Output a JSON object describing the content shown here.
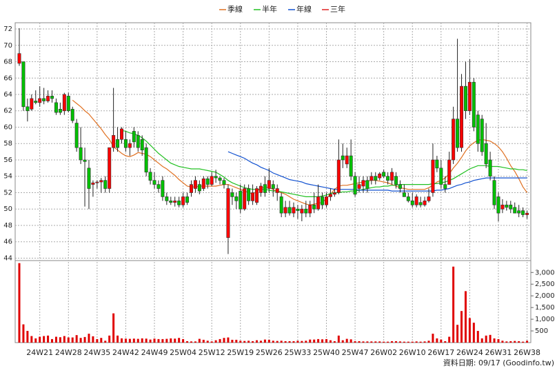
{
  "chart_data": {
    "type": "candlestick",
    "footer": "資料日期: 09/17  (Goodinfo.tw)",
    "categories": [
      null,
      null,
      null,
      null,
      null,
      "24W21",
      null,
      null,
      null,
      null,
      null,
      null,
      "24W28",
      null,
      null,
      null,
      null,
      null,
      null,
      "24W35",
      null,
      null,
      null,
      null,
      null,
      null,
      "24W42",
      null,
      null,
      null,
      null,
      null,
      null,
      "24W49",
      null,
      null,
      null,
      null,
      null,
      null,
      "25W04",
      null,
      null,
      null,
      null,
      null,
      null,
      "25W12",
      null,
      null,
      null,
      null,
      null,
      null,
      "25W19",
      null,
      null,
      null,
      null,
      null,
      null,
      "25W26",
      null,
      null,
      null,
      null,
      null,
      null,
      "25W33",
      null,
      null,
      null,
      null,
      null,
      null,
      "25W40",
      null,
      null,
      null,
      null,
      null,
      null,
      "25W47",
      null,
      null,
      null,
      null,
      null,
      null,
      "26W02",
      null,
      null,
      null,
      null,
      null,
      null,
      "26W10",
      null,
      null,
      null,
      null,
      null,
      null,
      "26W17",
      null,
      null,
      null,
      null,
      null,
      null,
      "26W24",
      null,
      null,
      null,
      null,
      null,
      null,
      "26W31",
      null,
      null,
      null,
      null,
      null,
      null,
      "26W38"
    ],
    "open": [
      67.8,
      68.0,
      62.5,
      62.2,
      63.2,
      63.0,
      63.5,
      63.2,
      63.8,
      63.0,
      62.2,
      62.0,
      63.8,
      62.2,
      60.5,
      57.5,
      56.0,
      55.0,
      53.0,
      53.2,
      53.3,
      53.5,
      52.5,
      57.5,
      58.5,
      58.5,
      58.5,
      57.5,
      59.5,
      59.0,
      58.5,
      57.5,
      54.5,
      53.5,
      53.0,
      53.5,
      51.5,
      51.0,
      50.8,
      51.0,
      50.5,
      51.5,
      52.0,
      52.5,
      53.0,
      52.5,
      53.7,
      53.0,
      54.0,
      53.8,
      53.5,
      46.5,
      52.0,
      51.5,
      52.2,
      50.0,
      52.5,
      51.0,
      50.8,
      52.0,
      53.0,
      52.5,
      53.0,
      52.0,
      51.5,
      49.5,
      50.2,
      49.5,
      50.0,
      49.5,
      50.0,
      49.5,
      50.5,
      50.0,
      51.5,
      50.5,
      51.5,
      51.8,
      52.0,
      56.5,
      55.5,
      56.5,
      54.0,
      52.5,
      52.8,
      53.5,
      53.5,
      54.0,
      53.8,
      54.5,
      54.0,
      53.5,
      54.0,
      53.0,
      52.0,
      51.5,
      51.0,
      50.5,
      50.8,
      50.5,
      51.0,
      52.0,
      56.0,
      55.0,
      53.0,
      53.0,
      56.0,
      61.0,
      57.5,
      65.0,
      62.0,
      65.5,
      61.5,
      61.0,
      58.0,
      56.0,
      53.5,
      51.5,
      50.0,
      50.5,
      50.5,
      50.2,
      49.8,
      49.8,
      49.3
    ],
    "high": [
      72.1,
      68.0,
      63.5,
      64.0,
      64.5,
      65.0,
      64.8,
      64.5,
      64.5,
      63.5,
      63.0,
      64.2,
      64.2,
      62.5,
      61.0,
      60.0,
      57.5,
      56.0,
      53.5,
      53.5,
      53.8,
      54.0,
      57.5,
      64.8,
      60.0,
      60.0,
      59.5,
      58.5,
      60.0,
      59.5,
      59.0,
      58.0,
      55.0,
      54.5,
      53.5,
      54.0,
      52.0,
      51.5,
      51.5,
      51.5,
      52.0,
      52.0,
      53.5,
      54.0,
      53.5,
      54.0,
      54.0,
      54.5,
      54.8,
      54.0,
      53.8,
      53.0,
      52.5,
      52.0,
      53.0,
      53.0,
      53.0,
      53.0,
      52.8,
      53.2,
      54.0,
      55.0,
      53.5,
      53.0,
      52.0,
      51.0,
      51.0,
      50.8,
      50.5,
      50.5,
      51.0,
      51.0,
      52.0,
      53.0,
      52.0,
      52.0,
      52.5,
      52.5,
      58.5,
      58.0,
      57.5,
      58.5,
      54.5,
      54.0,
      54.0,
      54.0,
      54.5,
      54.5,
      54.5,
      54.8,
      54.5,
      55.0,
      54.5,
      53.5,
      53.0,
      52.0,
      52.0,
      51.8,
      51.5,
      51.5,
      52.5,
      58.0,
      56.5,
      56.0,
      54.0,
      57.0,
      62.5,
      70.8,
      66.5,
      68.0,
      68.3,
      66.0,
      62.0,
      61.5,
      60.5,
      57.0,
      54.0,
      52.0,
      51.2,
      51.0,
      51.0,
      50.8,
      50.5,
      50.2,
      49.8
    ],
    "low": [
      67.5,
      62.0,
      60.7,
      62.0,
      62.8,
      62.5,
      62.8,
      63.0,
      63.0,
      61.5,
      61.5,
      61.5,
      61.8,
      60.5,
      57.0,
      55.5,
      50.3,
      50.0,
      51.5,
      52.5,
      52.0,
      52.0,
      52.0,
      57.0,
      57.0,
      58.0,
      57.0,
      56.5,
      57.5,
      57.0,
      56.5,
      54.0,
      53.0,
      52.5,
      52.0,
      51.0,
      50.5,
      50.5,
      50.3,
      50.2,
      50.2,
      50.5,
      51.5,
      52.0,
      51.8,
      52.2,
      52.5,
      52.8,
      53.2,
      53.0,
      52.5,
      44.5,
      50.5,
      50.0,
      49.5,
      49.8,
      50.5,
      50.5,
      50.5,
      51.5,
      51.5,
      52.0,
      51.5,
      51.0,
      49.0,
      49.0,
      49.2,
      49.0,
      48.8,
      48.5,
      49.0,
      49.0,
      49.5,
      49.8,
      50.0,
      50.2,
      51.0,
      51.5,
      51.8,
      55.0,
      55.0,
      53.5,
      51.5,
      52.0,
      52.0,
      52.0,
      53.0,
      53.0,
      53.5,
      53.8,
      53.0,
      53.0,
      52.5,
      52.0,
      51.5,
      50.8,
      50.2,
      50.2,
      50.2,
      50.3,
      50.8,
      51.5,
      54.5,
      52.5,
      52.0,
      53.0,
      55.5,
      57.0,
      57.0,
      61.0,
      61.5,
      59.5,
      57.0,
      56.5,
      55.0,
      53.5,
      50.0,
      48.5,
      49.5,
      49.8,
      49.5,
      49.5,
      49.0,
      49.0,
      48.8
    ],
    "close": [
      69.0,
      62.5,
      62.0,
      63.5,
      63.0,
      63.5,
      63.2,
      63.8,
      63.5,
      61.8,
      61.8,
      64.0,
      62.0,
      60.8,
      57.5,
      56.0,
      55.8,
      52.5,
      53.2,
      53.3,
      53.5,
      52.5,
      57.5,
      59.0,
      57.5,
      59.8,
      57.5,
      58.0,
      58.2,
      57.5,
      57.2,
      54.5,
      53.5,
      53.0,
      52.5,
      51.5,
      51.0,
      50.8,
      51.0,
      50.5,
      51.5,
      50.8,
      53.0,
      53.5,
      52.2,
      53.7,
      53.0,
      54.0,
      53.8,
      53.5,
      53.0,
      52.5,
      51.5,
      51.0,
      50.0,
      52.5,
      51.0,
      52.0,
      52.5,
      52.8,
      52.0,
      53.5,
      52.5,
      52.5,
      49.5,
      50.2,
      49.5,
      50.2,
      49.8,
      50.0,
      49.5,
      50.5,
      50.0,
      51.5,
      50.5,
      51.5,
      51.8,
      52.0,
      56.0,
      56.0,
      56.5,
      54.0,
      51.8,
      53.0,
      53.5,
      52.5,
      54.0,
      53.5,
      54.3,
      54.0,
      53.5,
      54.5,
      53.0,
      52.5,
      51.5,
      51.0,
      50.5,
      51.5,
      50.5,
      51.0,
      51.5,
      56.0,
      55.0,
      53.0,
      52.5,
      56.0,
      61.0,
      57.5,
      65.0,
      62.0,
      65.5,
      60.0,
      58.0,
      57.0,
      55.5,
      54.0,
      50.5,
      49.5,
      50.5,
      50.2,
      50.0,
      49.5,
      49.5,
      49.3,
      49.5
    ],
    "up_color": "#ff0000",
    "down_color": "#00c000",
    "ylim": [
      43.7,
      72.76
    ],
    "yticks": [
      44,
      46,
      48,
      50,
      52,
      54,
      56,
      58,
      60,
      62,
      64,
      66,
      68,
      70,
      72
    ],
    "grid": true,
    "series": [
      {
        "name": "季線",
        "color": "#e07020",
        "values": [
          null,
          null,
          null,
          null,
          null,
          null,
          null,
          null,
          null,
          null,
          null,
          null,
          null,
          63.3,
          62.9,
          62.5,
          62.0,
          61.6,
          61.0,
          60.4,
          59.8,
          59.1,
          58.5,
          57.6,
          57.2,
          56.8,
          56.5,
          56.4,
          56.6,
          56.9,
          56.8,
          56.7,
          56.4,
          56.0,
          55.6,
          55.2,
          54.9,
          54.5,
          54.1,
          53.6,
          53.2,
          52.8,
          52.7,
          52.7,
          52.8,
          52.8,
          52.8,
          52.8,
          52.8,
          52.9,
          53.0,
          53.0,
          52.8,
          52.6,
          52.4,
          52.2,
          52.0,
          51.8,
          52.2,
          52.5,
          52.7,
          52.6,
          52.4,
          52.1,
          52.0,
          51.8,
          51.5,
          51.2,
          51.0,
          50.8,
          50.6,
          50.5,
          50.6,
          50.7,
          50.8,
          51.3,
          51.8,
          52.4,
          52.8,
          52.9,
          52.9,
          53.0,
          53.1,
          53.2,
          53.3,
          53.4,
          53.5,
          53.5,
          53.4,
          53.3,
          53.2,
          53.0,
          52.8,
          52.6,
          52.5,
          52.4,
          52.4,
          52.4,
          52.4,
          52.4,
          52.6,
          52.9,
          53.3,
          53.5,
          53.8,
          54.3,
          55.0,
          55.6,
          56.3,
          57.1,
          57.7,
          58.1,
          58.4,
          58.5,
          58.4,
          58.3,
          58.0,
          57.6,
          57.0,
          56.2,
          55.3,
          54.6,
          53.7,
          52.7,
          52.0
        ]
      },
      {
        "name": "半年",
        "color": "#20c020",
        "values": [
          null,
          null,
          null,
          null,
          null,
          null,
          null,
          null,
          null,
          null,
          null,
          null,
          null,
          null,
          null,
          null,
          null,
          null,
          null,
          null,
          null,
          null,
          null,
          null,
          null,
          59.6,
          59.5,
          59.3,
          59.2,
          59.0,
          58.7,
          58.3,
          57.8,
          57.3,
          56.8,
          56.4,
          56.0,
          55.6,
          55.4,
          55.2,
          55.1,
          55.0,
          54.9,
          54.9,
          54.9,
          54.8,
          54.7,
          54.6,
          54.5,
          54.2,
          53.9,
          53.5,
          53.2,
          53.0,
          52.8,
          52.6,
          52.5,
          52.4,
          52.4,
          52.4,
          52.4,
          52.3,
          52.2,
          52.2,
          52.1,
          52.0,
          51.9,
          51.8,
          51.7,
          51.6,
          51.5,
          51.5,
          51.5,
          51.5,
          51.6,
          51.7,
          51.9,
          52.0,
          52.0,
          52.1,
          52.1,
          52.2,
          52.2,
          52.3,
          52.4,
          52.5,
          52.6,
          52.7,
          52.7,
          52.8,
          52.8,
          52.9,
          52.9,
          53.0,
          53.0,
          53.0,
          53.0,
          53.0,
          53.0,
          53.0,
          53.0,
          53.1,
          53.1,
          53.2,
          53.3,
          53.5,
          53.7,
          54.0,
          54.3,
          54.6,
          54.9,
          55.1,
          55.3,
          55.3,
          55.3,
          55.2,
          55.2,
          55.2,
          55.1,
          55.0,
          54.9,
          54.9,
          54.8,
          54.8,
          54.7
        ]
      },
      {
        "name": "年線",
        "color": "#1050d0",
        "values": [
          null,
          null,
          null,
          null,
          null,
          null,
          null,
          null,
          null,
          null,
          null,
          null,
          null,
          null,
          null,
          null,
          null,
          null,
          null,
          null,
          null,
          null,
          null,
          null,
          null,
          null,
          null,
          null,
          null,
          null,
          null,
          null,
          null,
          null,
          null,
          null,
          null,
          null,
          null,
          null,
          null,
          null,
          null,
          null,
          null,
          null,
          null,
          null,
          null,
          null,
          null,
          57.0,
          56.8,
          56.6,
          56.4,
          56.2,
          55.9,
          55.6,
          55.4,
          55.1,
          54.9,
          54.7,
          54.4,
          54.2,
          54.0,
          53.8,
          53.6,
          53.5,
          53.4,
          53.3,
          53.1,
          53.0,
          52.9,
          52.8,
          52.7,
          52.6,
          52.5,
          52.4,
          52.4,
          52.4,
          52.4,
          52.4,
          52.4,
          52.3,
          52.3,
          52.3,
          52.3,
          52.3,
          52.3,
          52.3,
          52.3,
          52.2,
          52.2,
          52.2,
          52.2,
          52.2,
          52.2,
          52.2,
          52.2,
          52.2,
          52.2,
          52.2,
          52.3,
          52.3,
          52.4,
          52.5,
          52.7,
          52.9,
          53.0,
          53.2,
          53.3,
          53.5,
          53.6,
          53.7,
          53.8,
          53.8,
          53.8,
          53.8,
          53.8,
          53.8,
          53.8,
          53.8,
          53.8,
          53.8,
          53.8
        ]
      },
      {
        "name": "三年",
        "color": "#e02020"
      }
    ],
    "volume": {
      "color": "#e00000",
      "values": [
        3400,
        780,
        500,
        280,
        180,
        250,
        280,
        300,
        150,
        250,
        230,
        280,
        220,
        220,
        320,
        200,
        240,
        380,
        270,
        150,
        200,
        80,
        300,
        1250,
        300,
        180,
        170,
        160,
        170,
        160,
        180,
        170,
        130,
        170,
        150,
        150,
        160,
        180,
        170,
        200,
        150,
        60,
        50,
        50,
        160,
        120,
        80,
        50,
        100,
        150,
        200,
        220,
        120,
        120,
        80,
        70,
        80,
        60,
        100,
        80,
        130,
        120,
        80,
        70,
        80,
        60,
        60,
        60,
        80,
        70,
        80,
        130,
        130,
        150,
        140,
        150,
        100,
        60,
        300,
        100,
        160,
        140,
        60,
        60,
        50,
        50,
        50,
        50,
        50,
        40,
        40,
        60,
        60,
        50,
        40,
        40,
        40,
        50,
        40,
        50,
        80,
        380,
        180,
        130,
        60,
        250,
        3250,
        760,
        1350,
        2200,
        1050,
        850,
        500,
        180,
        300,
        330,
        180,
        150,
        80,
        50,
        60,
        70,
        60,
        40,
        80
      ],
      "ylim": [
        0,
        3450
      ],
      "yticks": [
        500,
        {
          "value": 1000,
          "label": "1,000"
        },
        {
          "value": 1500,
          "label": "1,500"
        },
        {
          "value": 2000,
          "label": "2,000"
        },
        {
          "value": 2500,
          "label": "2,500"
        },
        {
          "value": 3000,
          "label": "3,000"
        }
      ]
    }
  }
}
